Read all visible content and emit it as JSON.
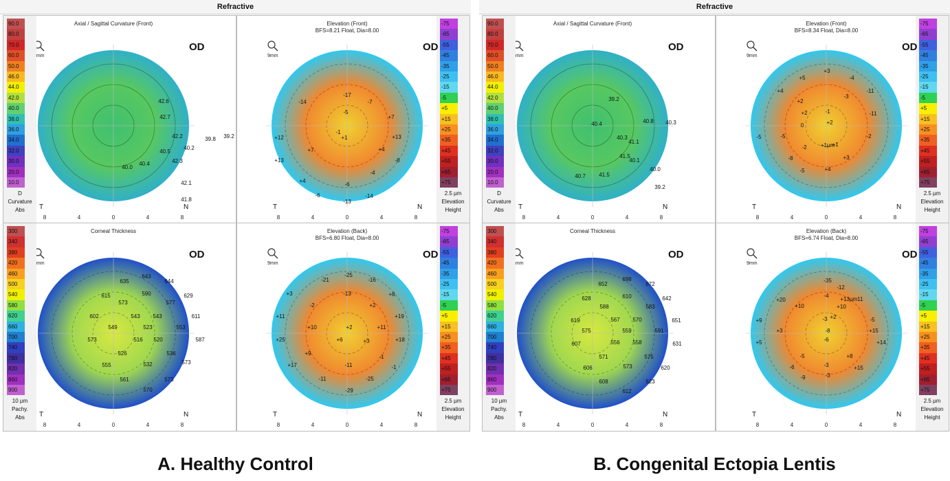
{
  "sections": [
    {
      "title": "Refractive",
      "caption": "A. Healthy Control",
      "panels": [
        {
          "title": "Axial / Sagittal Curvature (Front)",
          "subtitle": "",
          "eye": "OD",
          "zoom": "9mm",
          "scale_type": "curv",
          "footer": [
            "D",
            "Curvature",
            "Abs"
          ],
          "labels": [
            [
              "42.6",
              185,
              113
            ],
            [
              "42.7",
              187,
              136
            ],
            [
              "42.2",
              205,
              164
            ],
            [
              "39.8",
              253,
              168
            ],
            [
              "39.2",
              280,
              164
            ],
            [
              "40.2",
              222,
              181
            ],
            [
              "40.5",
              187,
              186
            ],
            [
              "40.4",
              157,
              204
            ],
            [
              "40.0",
              132,
              209
            ],
            [
              "42.3",
              205,
              200
            ],
            [
              "42.1",
              218,
              232
            ],
            [
              "41.8",
              218,
              256
            ]
          ]
        },
        {
          "title": "Elevation (Front)",
          "subtitle": "BFS=8.21 Float, Dia=8.00",
          "eye": "OD",
          "zoom": "9mm",
          "scale_type": "elev",
          "footer": [
            "2.5 µm",
            "Elevation",
            "Height"
          ],
          "labels": [
            [
              "-17",
              160,
              104
            ],
            [
              "-14",
              95,
              114
            ],
            [
              "-7",
              193,
              114
            ],
            [
              "-5",
              158,
              129
            ],
            [
              "+7",
              224,
              136
            ],
            [
              "-1",
              147,
              158
            ],
            [
              "+12",
              61,
              166
            ],
            [
              "+1",
              156,
              166
            ],
            [
              "+13",
              232,
              165
            ],
            [
              "+7",
              107,
              184
            ],
            [
              "+4",
              210,
              183
            ],
            [
              "+13",
              61,
              199
            ],
            [
              "-8",
              233,
              199
            ],
            [
              "-4",
              197,
              217
            ],
            [
              "+4",
              95,
              229
            ],
            [
              "-6",
              160,
              234
            ],
            [
              "-6",
              117,
              250
            ],
            [
              "-13",
              160,
              259
            ],
            [
              "-14",
              192,
              251
            ]
          ]
        },
        {
          "title": "Corneal Thickness",
          "subtitle": "",
          "eye": "OD",
          "zoom": "9mm",
          "scale_type": "pachy",
          "footer": [
            "10 µm",
            "Pachy.",
            "Abs"
          ],
          "labels": [
            [
              "635",
              128,
              73
            ],
            [
              "643",
              160,
              66
            ],
            [
              "644",
              193,
              73
            ],
            [
              "615",
              101,
              94
            ],
            [
              "573",
              126,
              104
            ],
            [
              "590",
              160,
              91
            ],
            [
              "577",
              195,
              104
            ],
            [
              "629",
              221,
              94
            ],
            [
              "543",
              144,
              124
            ],
            [
              "543",
              176,
              124
            ],
            [
              "602",
              84,
              124
            ],
            [
              "611",
              232,
              124
            ],
            [
              "549",
              111,
              140
            ],
            [
              "523",
              162,
              140
            ],
            [
              "553",
              210,
              140
            ],
            [
              "573",
              81,
              158
            ],
            [
              "516",
              148,
              158
            ],
            [
              "520",
              177,
              158
            ],
            [
              "587",
              238,
              158
            ],
            [
              "526",
              125,
              178
            ],
            [
              "536",
              196,
              178
            ],
            [
              "555",
              102,
              195
            ],
            [
              "532",
              162,
              194
            ],
            [
              "573",
              218,
              191
            ],
            [
              "561",
              128,
              216
            ],
            [
              "573",
              193,
              216
            ],
            [
              "570",
              162,
              231
            ]
          ]
        },
        {
          "title": "Elevation (Back)",
          "subtitle": "BFS=6.80 Float, Dia=8.00",
          "eye": "OD",
          "zoom": "9mm",
          "scale_type": "elev",
          "footer": [
            "2.5 µm",
            "Elevation",
            "Height"
          ],
          "labels": [
            [
              "-21",
              128,
              71
            ],
            [
              "-25",
              162,
              64
            ],
            [
              "-16",
              196,
              71
            ],
            [
              "+3",
              76,
              91
            ],
            [
              "-13",
              160,
              91
            ],
            [
              "+8",
              225,
              92
            ],
            [
              "-2",
              109,
              108
            ],
            [
              "+2",
              197,
              108
            ],
            [
              "+11",
              63,
              124
            ],
            [
              "+19",
              236,
              124
            ],
            [
              "+10",
              109,
              140
            ],
            [
              "+2",
              163,
              140
            ],
            [
              "+11",
              210,
              140
            ],
            [
              "+25",
              63,
              158
            ],
            [
              "+6",
              149,
              158
            ],
            [
              "+3",
              188,
              160
            ],
            [
              "+18",
              237,
              158
            ],
            [
              "+9",
              103,
              178
            ],
            [
              "-1",
              210,
              183
            ],
            [
              "+17",
              80,
              195
            ],
            [
              "-11",
              162,
              195
            ],
            [
              "-1",
              228,
              198
            ],
            [
              "-11",
              124,
              215
            ],
            [
              "-25",
              193,
              215
            ],
            [
              "-29",
              163,
              232
            ]
          ]
        }
      ]
    },
    {
      "title": "Refractive",
      "caption": "B. Congenital Ectopia Lentis",
      "panels": [
        {
          "title": "Axial / Sagittal Curvature (Front)",
          "subtitle": "",
          "eye": "OD",
          "zoom": "9mm",
          "scale_type": "curv",
          "footer": [
            "D",
            "Curvature",
            "Abs"
          ],
          "labels": [
            [
              "39.2",
              143,
              110
            ],
            [
              "40.4",
              118,
              146
            ],
            [
              "40.8",
              193,
              142
            ],
            [
              "40.3",
              226,
              144
            ],
            [
              "40.3",
              155,
              166
            ],
            [
              "41.1",
              172,
              172
            ],
            [
              "41.5",
              159,
              193
            ],
            [
              "40.1",
              173,
              199
            ],
            [
              "41.5",
              129,
              220
            ],
            [
              "40.7",
              94,
              222
            ],
            [
              "40.0",
              203,
              212
            ],
            [
              "39.2",
              210,
              238
            ]
          ]
        },
        {
          "title": "Elevation (Front)",
          "subtitle": "BFS=8.34 Float, Dia=8.00",
          "eye": "OD",
          "zoom": "9mm",
          "scale_type": "elev",
          "footer": [
            "2.5 µm",
            "Elevation",
            "Height"
          ],
          "labels": [
            [
              "+3",
              161,
              69
            ],
            [
              "+5",
              125,
              79
            ],
            [
              "-4",
              197,
              79
            ],
            [
              "+4",
              93,
              98
            ],
            [
              "-11",
              224,
              98
            ],
            [
              "+2",
              122,
              113
            ],
            [
              "-3",
              189,
              106
            ],
            [
              "+2",
              128,
              130
            ],
            [
              "-1",
              162,
              128
            ],
            [
              "-11",
              228,
              131
            ],
            [
              "-5",
              97,
              164
            ],
            [
              "0",
              125,
              148
            ],
            [
              "+2",
              165,
              144
            ],
            [
              "-5",
              62,
              165
            ],
            [
              "-2",
              128,
              180
            ],
            [
              "+1µm",
              162,
              177
            ],
            [
              "-2",
              222,
              164
            ],
            [
              "+1",
              173,
              176
            ],
            [
              "-8",
              108,
              196
            ],
            [
              "+3",
              189,
              195
            ],
            [
              "-5",
              125,
              214
            ],
            [
              "+4",
              162,
              212
            ]
          ]
        },
        {
          "title": "Corneal Thickness",
          "subtitle": "",
          "eye": "OD",
          "zoom": "9mm",
          "scale_type": "pachy",
          "footer": [
            "10 µm",
            "Pachy.",
            "Abs"
          ],
          "labels": [
            [
              "652",
              127,
              77
            ],
            [
              "698",
              162,
              70
            ],
            [
              "672",
              196,
              77
            ],
            [
              "628",
              103,
              98
            ],
            [
              "610",
              162,
              95
            ],
            [
              "642",
              220,
              98
            ],
            [
              "588",
              129,
              110
            ],
            [
              "583",
              196,
              110
            ],
            [
              "619",
              87,
              130
            ],
            [
              "567",
              145,
              129
            ],
            [
              "570",
              177,
              129
            ],
            [
              "651",
              234,
              130
            ],
            [
              "575",
              103,
              145
            ],
            [
              "559",
              162,
              145
            ],
            [
              "591",
              209,
              145
            ],
            [
              "607",
              88,
              164
            ],
            [
              "556",
              145,
              162
            ],
            [
              "558",
              177,
              162
            ],
            [
              "631",
              235,
              164
            ],
            [
              "571",
              128,
              183
            ],
            [
              "575",
              194,
              183
            ],
            [
              "606",
              105,
              199
            ],
            [
              "573",
              163,
              197
            ],
            [
              "620",
              218,
              199
            ],
            [
              "608",
              128,
              219
            ],
            [
              "623",
              196,
              219
            ],
            [
              "612",
              162,
              233
            ]
          ]
        },
        {
          "title": "Elevation (Back)",
          "subtitle": "BFS=6.74 Float, Dia=8.00",
          "eye": "OD",
          "zoom": "9mm",
          "scale_type": "elev",
          "footer": [
            "2.5 µm",
            "Elevation",
            "Height"
          ],
          "labels": [
            [
              "-35",
              162,
              72
            ],
            [
              "-12",
              181,
              82
            ],
            [
              "-4",
              160,
              94
            ],
            [
              "+13µm11",
              197,
              99
            ],
            [
              "+20",
              94,
              100
            ],
            [
              "+10",
              121,
              109
            ],
            [
              "+10",
              182,
              110
            ],
            [
              "-5",
              227,
              129
            ],
            [
              "-3",
              158,
              128
            ],
            [
              "+9",
              62,
              130
            ],
            [
              "+2",
              170,
              125
            ],
            [
              "+3",
              92,
              145
            ],
            [
              "-8",
              162,
              145
            ],
            [
              "+15",
              229,
              145
            ],
            [
              "-6",
              160,
              158
            ],
            [
              "+5",
              62,
              162
            ],
            [
              "-5",
              125,
              182
            ],
            [
              "+8",
              194,
              182
            ],
            [
              "-3",
              160,
              195
            ],
            [
              "-6",
              110,
              198
            ],
            [
              "+15",
              207,
              199
            ],
            [
              "-9",
              126,
              213
            ],
            [
              "-3",
              162,
              210
            ],
            [
              "+14",
              240,
              162
            ]
          ]
        }
      ]
    }
  ],
  "scales": {
    "curv": {
      "values": [
        "90.0",
        "80.0",
        "70.0",
        "60.0",
        "50.0",
        "46.0",
        "44.0",
        "42.0",
        "40.0",
        "38.0",
        "36.0",
        "34.0",
        "32.0",
        "30.0",
        "20.0",
        "10.0"
      ],
      "colors": [
        "#c05050",
        "#c04040",
        "#d02828",
        "#e05028",
        "#f08020",
        "#f8b820",
        "#f0f000",
        "#b0e040",
        "#60d070",
        "#30c0b0",
        "#30a0e0",
        "#2070d0",
        "#4040c0",
        "#7030c0",
        "#a030c0",
        "#c060d0"
      ]
    },
    "elev": {
      "values": [
        "-75",
        "-65",
        "-55",
        "-45",
        "-35",
        "-25",
        "-15",
        "-5",
        "+5",
        "+15",
        "+25",
        "+35",
        "+45",
        "+55",
        "+65",
        "+75"
      ],
      "colors": [
        "#c040e0",
        "#9040d0",
        "#4060e0",
        "#3080e0",
        "#30a0e8",
        "#40c0f0",
        "#60d8f0",
        "#30d050",
        "#f8f000",
        "#f8c020",
        "#f89020",
        "#f06020",
        "#e03020",
        "#c02020",
        "#a02030",
        "#804060"
      ]
    },
    "pachy": {
      "values": [
        "300",
        "340",
        "380",
        "420",
        "460",
        "500",
        "540",
        "580",
        "620",
        "660",
        "700",
        "740",
        "780",
        "820",
        "860",
        "900"
      ],
      "colors": [
        "#c05050",
        "#d03030",
        "#e04020",
        "#f07020",
        "#f8a020",
        "#f8d020",
        "#f0f000",
        "#90e040",
        "#40d090",
        "#30b0e0",
        "#2080d0",
        "#3040c0",
        "#4030a0",
        "#7030b0",
        "#a030c0",
        "#c060d0"
      ]
    }
  }
}
